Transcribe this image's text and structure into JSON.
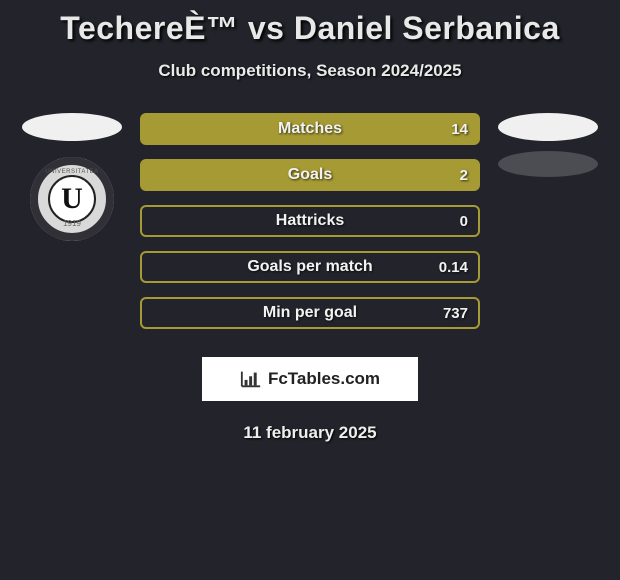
{
  "title": "TechereÈ™ vs Daniel Serbanica",
  "subtitle": "Club competitions, Season 2024/2025",
  "date": "11 february 2025",
  "logo_text": "FcTables.com",
  "club_letter": "U",
  "club_arc": "UNIVERSITATEA",
  "club_year": "1919",
  "colors": {
    "bar_fill": "#a59a33",
    "bar_border_on": "#a59a33",
    "bar_border_off": "#a59a33",
    "background": "#23242b",
    "oval_light": "#f0f0f1",
    "oval_dark": "#4c4d53"
  },
  "stats": [
    {
      "label": "Matches",
      "value": "14",
      "fill_pct": 100
    },
    {
      "label": "Goals",
      "value": "2",
      "fill_pct": 100
    },
    {
      "label": "Hattricks",
      "value": "0",
      "fill_pct": 0
    },
    {
      "label": "Goals per match",
      "value": "0.14",
      "fill_pct": 0
    },
    {
      "label": "Min per goal",
      "value": "737",
      "fill_pct": 0
    }
  ]
}
